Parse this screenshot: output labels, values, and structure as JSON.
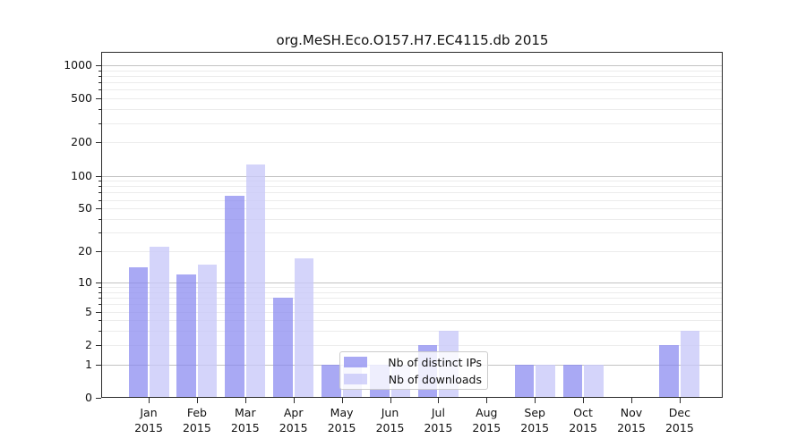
{
  "chart_data": {
    "type": "bar",
    "title": "org.MeSH.Eco.O157.H7.EC4115.db 2015",
    "x_categories": [
      "Jan",
      "Feb",
      "Mar",
      "Apr",
      "May",
      "Jun",
      "Jul",
      "Aug",
      "Sep",
      "Oct",
      "Nov",
      "Dec"
    ],
    "x_year_label": "2015",
    "y_scale": "log1p",
    "y_tick_labels": [
      "1000",
      "500",
      "200",
      "100",
      "50",
      "20",
      "10",
      "5",
      "2",
      "1",
      "0"
    ],
    "y_tick_values": [
      1000,
      500,
      200,
      100,
      50,
      20,
      10,
      5,
      2,
      1,
      0
    ],
    "ylim": [
      0,
      1280
    ],
    "grid": true,
    "legend_position": "lower-center",
    "series": [
      {
        "name": "Nb of distinct IPs",
        "color": "#8888f0",
        "alpha": 0.72,
        "values": [
          14,
          12,
          66,
          7,
          1,
          1,
          2,
          0,
          1,
          1,
          0,
          2
        ]
      },
      {
        "name": "Nb of downloads",
        "color": "#c8c8f8",
        "alpha": 0.78,
        "values": [
          22,
          15,
          126,
          17,
          1,
          1,
          3,
          0,
          1,
          1,
          0,
          3
        ]
      }
    ],
    "colors": {
      "major_grid": "#c3c3c3",
      "minor_grid": "#ececec",
      "axis": "#2b2b2b",
      "background": "#ffffff"
    }
  }
}
